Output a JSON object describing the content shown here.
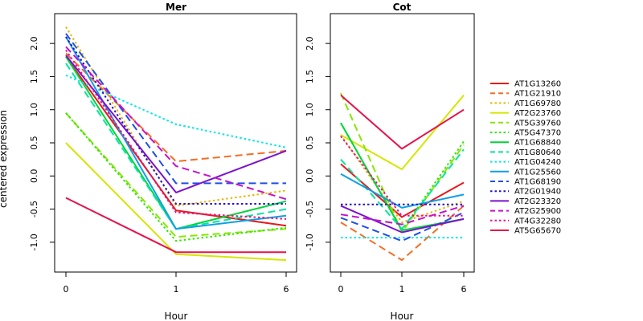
{
  "chart_data": {
    "type": "line",
    "ylabel": "centered expression",
    "xlabel": "Hour",
    "x_tick_labels": [
      "0",
      "1",
      "6"
    ],
    "y_ticks": [
      -1.0,
      -0.5,
      0.0,
      0.5,
      1.0,
      1.5,
      2.0
    ],
    "y_tick_labels": [
      "-1.0",
      "-0.5",
      "0.0",
      "0.5",
      "1.0",
      "1.5",
      "2.0"
    ],
    "ylim": [
      -1.45,
      2.45
    ],
    "legend_position": "right",
    "series": [
      {
        "name": "AT1G13260",
        "color": "#e41a1c",
        "dash": "solid"
      },
      {
        "name": "AT1G21910",
        "color": "#f46d24",
        "dash": "dashed"
      },
      {
        "name": "AT1G69780",
        "color": "#e6b800",
        "dash": "dotted"
      },
      {
        "name": "AT2G23760",
        "color": "#d4e600",
        "dash": "solid"
      },
      {
        "name": "AT5G39760",
        "color": "#88e600",
        "dash": "dashed"
      },
      {
        "name": "AT5G47370",
        "color": "#33e600",
        "dash": "dotted"
      },
      {
        "name": "AT1G68840",
        "color": "#00d43a",
        "dash": "solid"
      },
      {
        "name": "AT1G80640",
        "color": "#00e6a0",
        "dash": "dashed"
      },
      {
        "name": "AT1G04240",
        "color": "#00e6e6",
        "dash": "dotted"
      },
      {
        "name": "AT1G25560",
        "color": "#0f9fe6",
        "dash": "solid"
      },
      {
        "name": "AT1G68190",
        "color": "#1f4fe6",
        "dash": "dashed"
      },
      {
        "name": "AT2G01940",
        "color": "#2211cc",
        "dash": "dotted"
      },
      {
        "name": "AT2G23320",
        "color": "#7a12cc",
        "dash": "solid"
      },
      {
        "name": "AT2G25900",
        "color": "#c512cc",
        "dash": "dashed"
      },
      {
        "name": "AT4G32280",
        "color": "#e6128e",
        "dash": "dotted"
      },
      {
        "name": "AT5G65670",
        "color": "#e6124a",
        "dash": "solid"
      }
    ],
    "panels": [
      {
        "title": "Mer",
        "values": [
          [
            1.8,
            -0.52,
            -0.75
          ],
          [
            1.85,
            0.22,
            0.38
          ],
          [
            2.25,
            -0.45,
            -0.22
          ],
          [
            0.5,
            -1.18,
            -1.27
          ],
          [
            0.95,
            -0.92,
            -0.8
          ],
          [
            0.95,
            -0.98,
            -0.78
          ],
          [
            1.8,
            -0.8,
            -0.38
          ],
          [
            1.7,
            -0.8,
            -0.5
          ],
          [
            1.52,
            0.78,
            0.43
          ],
          [
            2.1,
            -0.8,
            -0.6
          ],
          [
            2.15,
            -0.11,
            -0.11
          ],
          [
            2.1,
            -0.42,
            -0.42
          ],
          [
            1.82,
            -0.25,
            0.38
          ],
          [
            1.95,
            0.15,
            -0.35
          ],
          [
            1.9,
            -0.55,
            -0.65
          ],
          [
            -0.33,
            -1.15,
            -1.15
          ]
        ]
      },
      {
        "title": "Cot",
        "values": [
          [
            0.18,
            -0.62,
            -0.1
          ],
          [
            -0.7,
            -1.27,
            -0.45
          ],
          [
            0.62,
            -0.7,
            -0.38
          ],
          [
            0.62,
            0.1,
            1.22
          ],
          [
            1.25,
            -0.85,
            0.47
          ],
          [
            0.8,
            -0.82,
            0.52
          ],
          [
            0.8,
            -0.82,
            -0.65
          ],
          [
            0.25,
            -0.8,
            0.4
          ],
          [
            -0.93,
            -0.93,
            -0.93
          ],
          [
            0.03,
            -0.48,
            -0.28
          ],
          [
            -0.63,
            -0.98,
            -0.55
          ],
          [
            -0.43,
            -0.43,
            -0.43
          ],
          [
            -0.45,
            -0.85,
            -0.65
          ],
          [
            -0.58,
            -0.73,
            -0.45
          ],
          [
            0.6,
            -0.6,
            -0.6
          ],
          [
            1.22,
            0.41,
            1.0
          ]
        ]
      }
    ]
  }
}
